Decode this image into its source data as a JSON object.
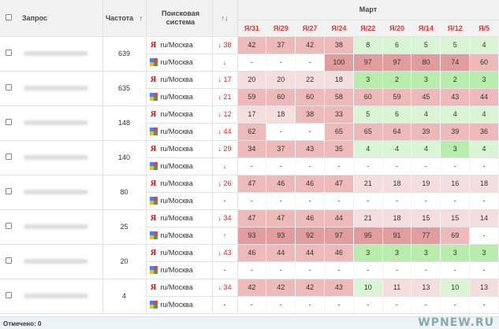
{
  "headers": {
    "query": "Запрос",
    "frequency": "Частота",
    "frequency_sort": "↑",
    "search_engine": "Поисковая система",
    "change_up": "↑",
    "change_down": "↓",
    "month": "Март",
    "dates": [
      "Я/31",
      "Я/29",
      "Я/27",
      "Я/24",
      "Я/22",
      "Я/20",
      "Я/14",
      "Я/12",
      "Я/5"
    ]
  },
  "groups": [
    {
      "freq": "639",
      "rows": [
        {
          "engine": "yandex",
          "region": "ru/Москва",
          "change": "↓ 38",
          "dir": "down",
          "vals": [
            "42",
            "37",
            "42",
            "38",
            "8",
            "6",
            "5",
            "5",
            "4"
          ]
        },
        {
          "engine": "google",
          "region": "ru/Москва",
          "change": "↓",
          "dir": "down",
          "vals": [
            "-",
            "-",
            "-",
            "100",
            "97",
            "97",
            "80",
            "74",
            "60"
          ]
        }
      ]
    },
    {
      "freq": "635",
      "rows": [
        {
          "engine": "yandex",
          "region": "ru/Москва",
          "change": "↓ 17",
          "dir": "down",
          "vals": [
            "20",
            "20",
            "22",
            "18",
            "3",
            "2",
            "3",
            "2",
            "3"
          ]
        },
        {
          "engine": "google",
          "region": "ru/Москва",
          "change": "↓ 21",
          "dir": "down",
          "vals": [
            "59",
            "60",
            "60",
            "58",
            "60",
            "59",
            "45",
            "43",
            "44"
          ]
        }
      ]
    },
    {
      "freq": "148",
      "rows": [
        {
          "engine": "yandex",
          "region": "ru/Москва",
          "change": "↓ 12",
          "dir": "down",
          "vals": [
            "17",
            "18",
            "38",
            "33",
            "5",
            "6",
            "4",
            "4",
            "4"
          ]
        },
        {
          "engine": "google",
          "region": "ru/Москва",
          "change": "↓ 44",
          "dir": "down",
          "vals": [
            "62",
            "-",
            "-",
            "65",
            "65",
            "64",
            "39",
            "39",
            "36"
          ]
        }
      ]
    },
    {
      "freq": "140",
      "rows": [
        {
          "engine": "yandex",
          "region": "ru/Москва",
          "change": "↓ 29",
          "dir": "down",
          "vals": [
            "34",
            "37",
            "43",
            "35",
            "4",
            "4",
            "4",
            "3",
            "4"
          ]
        },
        {
          "engine": "google",
          "region": "ru/Москва",
          "change": "↓",
          "dir": "down",
          "vals": [
            "-",
            "-",
            "-",
            "-",
            "-",
            "-",
            "-",
            "-",
            "-"
          ]
        }
      ]
    },
    {
      "freq": "80",
      "rows": [
        {
          "engine": "yandex",
          "region": "ru/Москва",
          "change": "↓ 26",
          "dir": "down",
          "vals": [
            "47",
            "46",
            "46",
            "47",
            "21",
            "18",
            "19",
            "16",
            "18"
          ]
        },
        {
          "engine": "google",
          "region": "ru/Москва",
          "change": "-",
          "dir": "none",
          "vals": [
            "-",
            "-",
            "-",
            "-",
            "-",
            "-",
            "-",
            "-",
            "-"
          ]
        }
      ]
    },
    {
      "freq": "25",
      "rows": [
        {
          "engine": "yandex",
          "region": "ru/Москва",
          "change": "↓ 34",
          "dir": "down",
          "vals": [
            "47",
            "47",
            "46",
            "44",
            "21",
            "18",
            "15",
            "15",
            "14"
          ]
        },
        {
          "engine": "google",
          "region": "ru/Москва",
          "change": "↑",
          "dir": "up",
          "vals": [
            "93",
            "93",
            "92",
            "97",
            "95",
            "91",
            "77",
            "69",
            "-"
          ]
        }
      ]
    },
    {
      "freq": "20",
      "rows": [
        {
          "engine": "yandex",
          "region": "ru/Москва",
          "change": "↓ 43",
          "dir": "down",
          "vals": [
            "46",
            "44",
            "44",
            "46",
            "3",
            "3",
            "3",
            "3",
            "3"
          ]
        },
        {
          "engine": "google",
          "region": "ru/Москва",
          "change": "-",
          "dir": "none",
          "vals": [
            "-",
            "-",
            "-",
            "-",
            "-",
            "-",
            "-",
            "-",
            "-"
          ]
        }
      ]
    },
    {
      "freq": "4",
      "rows": [
        {
          "engine": "yandex",
          "region": "ru/Москва",
          "change": "↓ 34",
          "dir": "down",
          "vals": [
            "42",
            "42",
            "42",
            "43",
            "10",
            "11",
            "13",
            "10",
            "13"
          ]
        },
        {
          "engine": "google",
          "region": "ru/Москва",
          "change": "-",
          "dir": "none",
          "vals": [
            "-",
            "-",
            "-",
            "-",
            "-",
            "-",
            "-",
            "-",
            "-"
          ]
        }
      ]
    }
  ],
  "footer": {
    "selected": "Отмечено: 0"
  },
  "watermark": "WPNEW.RU",
  "colors": {
    "green_light": "#d9f5d3",
    "green": "#b8ecac",
    "red_light": "#f5dede",
    "red_mid": "#edb9b9",
    "red_dark": "#e19d9d",
    "arrow": "#8fd14f"
  }
}
